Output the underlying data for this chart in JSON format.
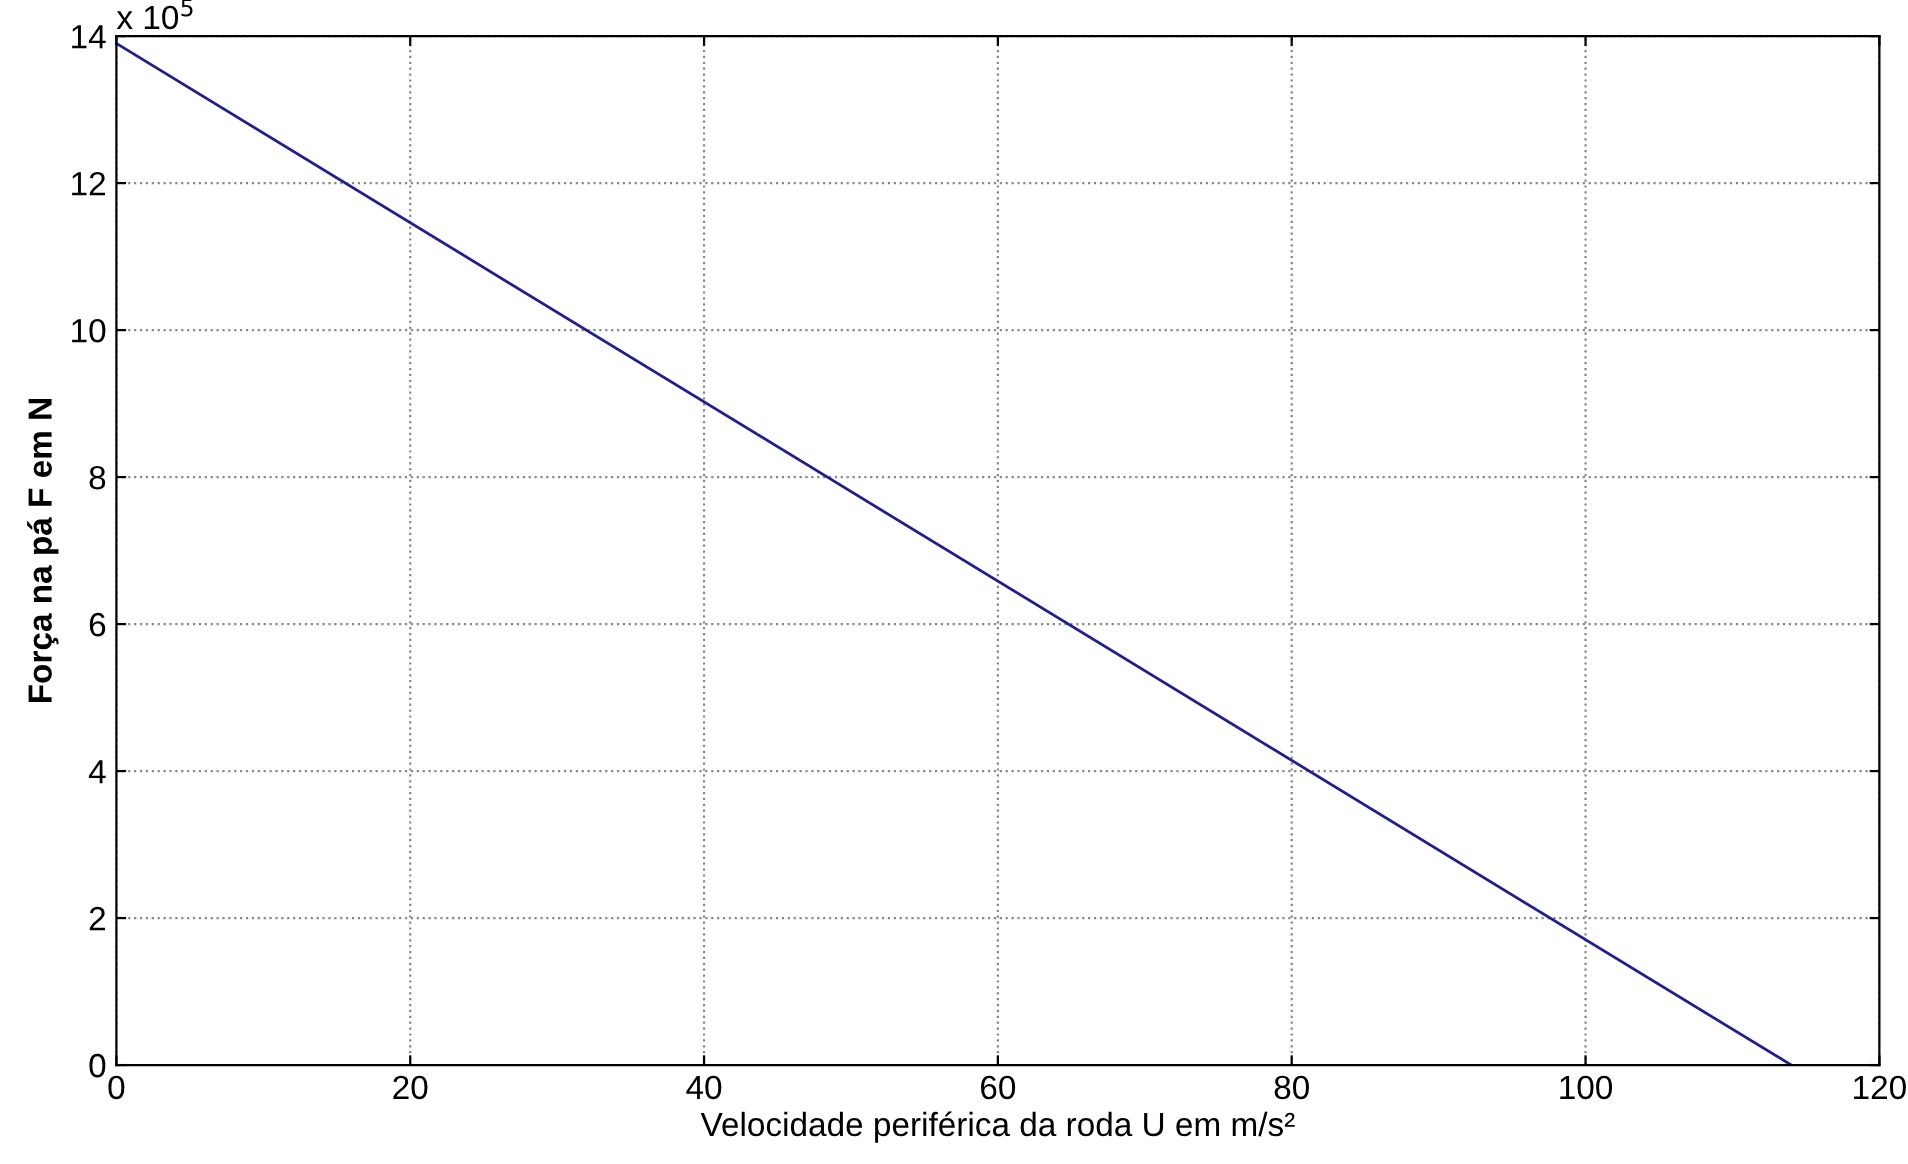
{
  "chart_data": {
    "type": "line",
    "x": [
      0,
      114
    ],
    "series": [
      {
        "color": "#1f1f8f",
        "values": [
          13.9,
          0
        ]
      }
    ],
    "xlabel": "Velocidade periférica da roda U em m/s²",
    "ylabel": "Força na pá F em N",
    "annotations": [
      "x 10$^{5}$"
    ],
    "xlim": [
      0,
      120
    ],
    "xticks": [
      0,
      20,
      40,
      60,
      80,
      100,
      120
    ],
    "ylim": [
      0,
      14
    ],
    "yticks": [
      0,
      2,
      4,
      6,
      8,
      10,
      12,
      14
    ],
    "grid": true,
    "line_style": "solid",
    "marker": "none"
  }
}
